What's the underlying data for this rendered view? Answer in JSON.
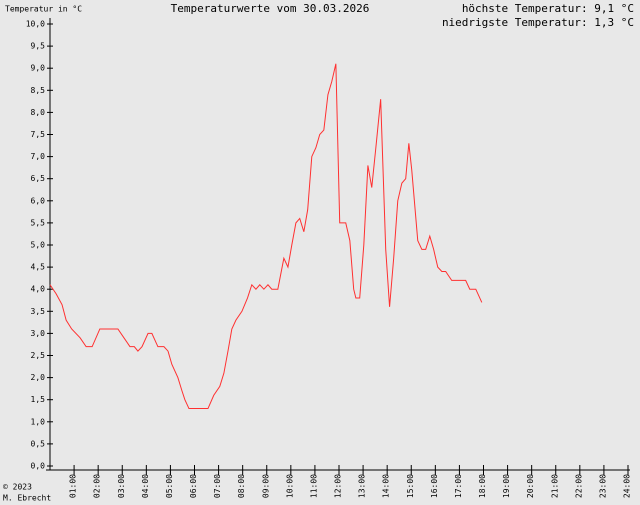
{
  "chart_data": {
    "type": "line",
    "title": "Temperaturwerte vom 30.03.2026",
    "y_label": "Temperatur in °C",
    "max_text": "höchste Temperatur: 9,1 °C",
    "min_text": "niedrigste Temperatur: 1,3 °C",
    "copyright": "© 2023",
    "author": "M. Ebrecht",
    "xlim": [
      0,
      24
    ],
    "ylim": [
      0,
      10
    ],
    "xticks": [
      {
        "value": 1,
        "label": "01:00"
      },
      {
        "value": 2,
        "label": "02:00"
      },
      {
        "value": 3,
        "label": "03:00"
      },
      {
        "value": 4,
        "label": "04:00"
      },
      {
        "value": 5,
        "label": "05:00"
      },
      {
        "value": 6,
        "label": "06:00"
      },
      {
        "value": 7,
        "label": "07:00"
      },
      {
        "value": 8,
        "label": "08:00"
      },
      {
        "value": 9,
        "label": "09:00"
      },
      {
        "value": 10,
        "label": "10:00"
      },
      {
        "value": 11,
        "label": "11:00"
      },
      {
        "value": 12,
        "label": "12:00"
      },
      {
        "value": 13,
        "label": "13:00"
      },
      {
        "value": 14,
        "label": "14:00"
      },
      {
        "value": 15,
        "label": "15:00"
      },
      {
        "value": 16,
        "label": "16:00"
      },
      {
        "value": 17,
        "label": "17:00"
      },
      {
        "value": 18,
        "label": "18:00"
      },
      {
        "value": 19,
        "label": "19:00"
      },
      {
        "value": 20,
        "label": "20:00"
      },
      {
        "value": 21,
        "label": "21:00"
      },
      {
        "value": 22,
        "label": "22:00"
      },
      {
        "value": 23,
        "label": "23:00"
      },
      {
        "value": 24,
        "label": "24:00"
      }
    ],
    "yticks": [
      {
        "value": 0,
        "label": "0,0"
      },
      {
        "value": 0.5,
        "label": "0,5"
      },
      {
        "value": 1,
        "label": "1,0"
      },
      {
        "value": 1.5,
        "label": "1,5"
      },
      {
        "value": 2,
        "label": "2,0"
      },
      {
        "value": 2.5,
        "label": "2,5"
      },
      {
        "value": 3,
        "label": "3,0"
      },
      {
        "value": 3.5,
        "label": "3,5"
      },
      {
        "value": 4,
        "label": "4,0"
      },
      {
        "value": 4.5,
        "label": "4,5"
      },
      {
        "value": 5,
        "label": "5,0"
      },
      {
        "value": 5.5,
        "label": "5,5"
      },
      {
        "value": 6,
        "label": "6,0"
      },
      {
        "value": 6.5,
        "label": "6,5"
      },
      {
        "value": 7,
        "label": "7,0"
      },
      {
        "value": 7.5,
        "label": "7,5"
      },
      {
        "value": 8,
        "label": "8,0"
      },
      {
        "value": 8.5,
        "label": "8,5"
      },
      {
        "value": 9,
        "label": "9,0"
      },
      {
        "value": 9.5,
        "label": "9,5"
      },
      {
        "value": 10,
        "label": "10,0"
      }
    ],
    "color": "#ff3030",
    "x": [
      0,
      0.25,
      0.5,
      0.67,
      0.9,
      1.25,
      1.5,
      1.75,
      2.07,
      2.5,
      2.82,
      3.07,
      3.32,
      3.5,
      3.65,
      3.82,
      4.07,
      4.23,
      4.48,
      4.73,
      4.9,
      5.06,
      5.31,
      5.48,
      5.6,
      5.77,
      6.06,
      6.56,
      6.8,
      7.05,
      7.22,
      7.39,
      7.55,
      7.72,
      7.97,
      8.2,
      8.38,
      8.55,
      8.71,
      8.88,
      9.05,
      9.21,
      9.46,
      9.71,
      9.88,
      10.04,
      10.21,
      10.37,
      10.54,
      10.7,
      10.87,
      11.04,
      11.2,
      11.37,
      11.54,
      11.7,
      11.87,
      12.03,
      12.28,
      12.45,
      12.61,
      12.7,
      12.86,
      13.03,
      13.2,
      13.36,
      13.53,
      13.73,
      13.94,
      14.1,
      14.27,
      14.44,
      14.61,
      14.77,
      14.9,
      15.02,
      15.27,
      15.44,
      15.6,
      15.77,
      15.93,
      16.1,
      16.27,
      16.43,
      16.68,
      17.01,
      17.26,
      17.43,
      17.68,
      17.93
    ],
    "values": [
      4.1,
      3.9,
      3.65,
      3.3,
      3.1,
      2.9,
      2.7,
      2.7,
      3.1,
      3.1,
      3.1,
      2.9,
      2.7,
      2.7,
      2.6,
      2.7,
      3.0,
      3.0,
      2.7,
      2.7,
      2.6,
      2.3,
      2.0,
      1.7,
      1.5,
      1.3,
      1.3,
      1.3,
      1.6,
      1.8,
      2.1,
      2.6,
      3.1,
      3.3,
      3.5,
      3.8,
      4.1,
      4.0,
      4.1,
      4.0,
      4.1,
      4.0,
      4.0,
      4.7,
      4.5,
      5.0,
      5.5,
      5.6,
      5.3,
      5.8,
      7.0,
      7.2,
      7.5,
      7.6,
      8.4,
      8.7,
      9.1,
      5.5,
      5.5,
      5.1,
      4.0,
      3.8,
      3.8,
      5.0,
      6.8,
      6.3,
      7.2,
      8.3,
      4.9,
      3.6,
      4.7,
      6.0,
      6.4,
      6.5,
      7.3,
      6.7,
      5.1,
      4.9,
      4.9,
      5.2,
      4.9,
      4.5,
      4.4,
      4.4,
      4.2,
      4.2,
      4.2,
      4.0,
      4.0,
      3.7
    ]
  }
}
